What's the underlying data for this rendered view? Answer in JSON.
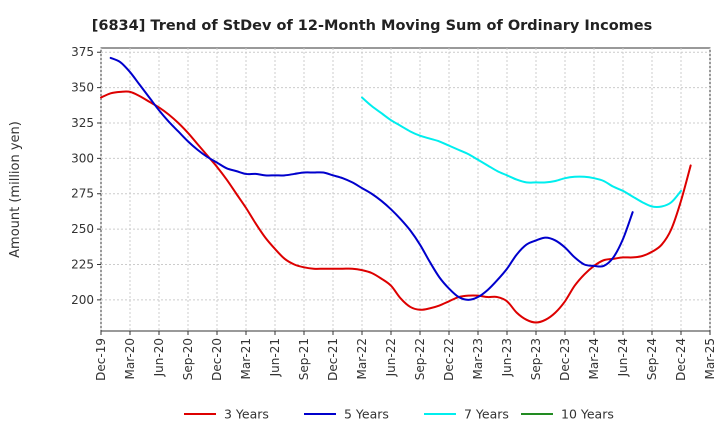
{
  "chart_data": {
    "type": "line",
    "title": "[6834]  Trend of StDev of 12-Month Moving Sum of Ordinary Incomes",
    "xlabel": "",
    "ylabel": "Amount (million yen)",
    "ylim": [
      178,
      378
    ],
    "yticks": [
      200,
      225,
      250,
      275,
      300,
      325,
      350,
      375
    ],
    "xlim": [
      "2019-12",
      "2025-03"
    ],
    "xticks": [
      "Dec-19",
      "Mar-20",
      "Jun-20",
      "Sep-20",
      "Dec-20",
      "Mar-21",
      "Jun-21",
      "Sep-21",
      "Dec-21",
      "Mar-22",
      "Jun-22",
      "Sep-22",
      "Dec-22",
      "Mar-23",
      "Jun-23",
      "Sep-23",
      "Dec-23",
      "Mar-24",
      "Jun-24",
      "Sep-24",
      "Dec-24",
      "Mar-25"
    ],
    "grid": true,
    "legend_position": "bottom",
    "series": [
      {
        "name": "3 Years",
        "color": "#dd0000",
        "points": [
          [
            "2019-12",
            343
          ],
          [
            "2020-01",
            346
          ],
          [
            "2020-02",
            347
          ],
          [
            "2020-03",
            347
          ],
          [
            "2020-04",
            344
          ],
          [
            "2020-05",
            340
          ],
          [
            "2020-06",
            336
          ],
          [
            "2020-07",
            331
          ],
          [
            "2020-08",
            325
          ],
          [
            "2020-09",
            318
          ],
          [
            "2020-10",
            310
          ],
          [
            "2020-11",
            302
          ],
          [
            "2020-12",
            294
          ],
          [
            "2021-01",
            285
          ],
          [
            "2021-02",
            275
          ],
          [
            "2021-03",
            265
          ],
          [
            "2021-04",
            254
          ],
          [
            "2021-05",
            244
          ],
          [
            "2021-06",
            236
          ],
          [
            "2021-07",
            229
          ],
          [
            "2021-08",
            225
          ],
          [
            "2021-09",
            223
          ],
          [
            "2021-10",
            222
          ],
          [
            "2021-11",
            222
          ],
          [
            "2021-12",
            222
          ],
          [
            "2022-01",
            222
          ],
          [
            "2022-02",
            222
          ],
          [
            "2022-03",
            221
          ],
          [
            "2022-04",
            219
          ],
          [
            "2022-05",
            215
          ],
          [
            "2022-06",
            210
          ],
          [
            "2022-07",
            201
          ],
          [
            "2022-08",
            195
          ],
          [
            "2022-09",
            193
          ],
          [
            "2022-10",
            194
          ],
          [
            "2022-11",
            196
          ],
          [
            "2022-12",
            199
          ],
          [
            "2023-01",
            202
          ],
          [
            "2023-02",
            203
          ],
          [
            "2023-03",
            203
          ],
          [
            "2023-04",
            202
          ],
          [
            "2023-05",
            202
          ],
          [
            "2023-06",
            199
          ],
          [
            "2023-07",
            191
          ],
          [
            "2023-08",
            186
          ],
          [
            "2023-09",
            184
          ],
          [
            "2023-10",
            186
          ],
          [
            "2023-11",
            191
          ],
          [
            "2023-12",
            199
          ],
          [
            "2024-01",
            210
          ],
          [
            "2024-02",
            218
          ],
          [
            "2024-03",
            224
          ],
          [
            "2024-04",
            228
          ],
          [
            "2024-05",
            229
          ],
          [
            "2024-06",
            230
          ],
          [
            "2024-07",
            230
          ],
          [
            "2024-08",
            231
          ],
          [
            "2024-09",
            234
          ],
          [
            "2024-10",
            239
          ],
          [
            "2024-11",
            250
          ],
          [
            "2024-12",
            270
          ],
          [
            "2025-01",
            295
          ]
        ]
      },
      {
        "name": "5 Years",
        "color": "#0000cc",
        "points": [
          [
            "2020-01",
            371
          ],
          [
            "2020-02",
            368
          ],
          [
            "2020-03",
            361
          ],
          [
            "2020-04",
            352
          ],
          [
            "2020-05",
            343
          ],
          [
            "2020-06",
            334
          ],
          [
            "2020-07",
            326
          ],
          [
            "2020-08",
            319
          ],
          [
            "2020-09",
            312
          ],
          [
            "2020-10",
            306
          ],
          [
            "2020-11",
            301
          ],
          [
            "2020-12",
            297
          ],
          [
            "2021-01",
            293
          ],
          [
            "2021-02",
            291
          ],
          [
            "2021-03",
            289
          ],
          [
            "2021-04",
            289
          ],
          [
            "2021-05",
            288
          ],
          [
            "2021-06",
            288
          ],
          [
            "2021-07",
            288
          ],
          [
            "2021-08",
            289
          ],
          [
            "2021-09",
            290
          ],
          [
            "2021-10",
            290
          ],
          [
            "2021-11",
            290
          ],
          [
            "2021-12",
            288
          ],
          [
            "2022-01",
            286
          ],
          [
            "2022-02",
            283
          ],
          [
            "2022-03",
            279
          ],
          [
            "2022-04",
            275
          ],
          [
            "2022-05",
            270
          ],
          [
            "2022-06",
            264
          ],
          [
            "2022-07",
            257
          ],
          [
            "2022-08",
            249
          ],
          [
            "2022-09",
            239
          ],
          [
            "2022-10",
            227
          ],
          [
            "2022-11",
            216
          ],
          [
            "2022-12",
            208
          ],
          [
            "2023-01",
            202
          ],
          [
            "2023-02",
            200
          ],
          [
            "2023-03",
            202
          ],
          [
            "2023-04",
            207
          ],
          [
            "2023-05",
            214
          ],
          [
            "2023-06",
            222
          ],
          [
            "2023-07",
            232
          ],
          [
            "2023-08",
            239
          ],
          [
            "2023-09",
            242
          ],
          [
            "2023-10",
            244
          ],
          [
            "2023-11",
            242
          ],
          [
            "2023-12",
            237
          ],
          [
            "2024-01",
            230
          ],
          [
            "2024-02",
            225
          ],
          [
            "2024-03",
            224
          ],
          [
            "2024-04",
            224
          ],
          [
            "2024-05",
            230
          ],
          [
            "2024-06",
            243
          ],
          [
            "2024-07",
            262
          ]
        ]
      },
      {
        "name": "7 Years",
        "color": "#00eeee",
        "points": [
          [
            "2022-03",
            343
          ],
          [
            "2022-04",
            337
          ],
          [
            "2022-05",
            332
          ],
          [
            "2022-06",
            327
          ],
          [
            "2022-07",
            323
          ],
          [
            "2022-08",
            319
          ],
          [
            "2022-09",
            316
          ],
          [
            "2022-10",
            314
          ],
          [
            "2022-11",
            312
          ],
          [
            "2022-12",
            309
          ],
          [
            "2023-01",
            306
          ],
          [
            "2023-02",
            303
          ],
          [
            "2023-03",
            299
          ],
          [
            "2023-04",
            295
          ],
          [
            "2023-05",
            291
          ],
          [
            "2023-06",
            288
          ],
          [
            "2023-07",
            285
          ],
          [
            "2023-08",
            283
          ],
          [
            "2023-09",
            283
          ],
          [
            "2023-10",
            283
          ],
          [
            "2023-11",
            284
          ],
          [
            "2023-12",
            286
          ],
          [
            "2024-01",
            287
          ],
          [
            "2024-02",
            287
          ],
          [
            "2024-03",
            286
          ],
          [
            "2024-04",
            284
          ],
          [
            "2024-05",
            280
          ],
          [
            "2024-06",
            277
          ],
          [
            "2024-07",
            273
          ],
          [
            "2024-08",
            269
          ],
          [
            "2024-09",
            266
          ],
          [
            "2024-10",
            266
          ],
          [
            "2024-11",
            269
          ],
          [
            "2024-12",
            277
          ]
        ]
      },
      {
        "name": "10 Years",
        "color": "#228b22",
        "points": []
      }
    ]
  }
}
